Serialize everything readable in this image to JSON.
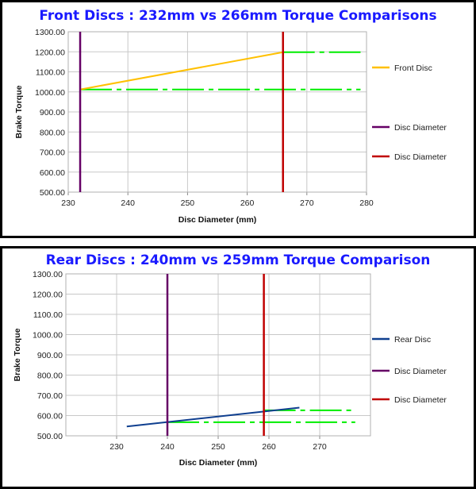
{
  "chart_data": [
    {
      "type": "line",
      "title": "Front Discs : 232mm vs 266mm Torque Comparisons",
      "xlabel": "Disc Diameter (mm)",
      "ylabel": "Brake Torque",
      "xlim": [
        230,
        280
      ],
      "ylim": [
        500,
        1300
      ],
      "xticks": [
        "230",
        "240",
        "250",
        "260",
        "270",
        "280"
      ],
      "yticks": [
        "500.00",
        "600.00",
        "700.00",
        "800.00",
        "900.00",
        "1000.00",
        "1100.00",
        "1200.00",
        "1300.00"
      ],
      "grid": true,
      "legend_position": "right",
      "series": [
        {
          "name": "Front Disc",
          "kind": "line",
          "color": "#ffc000",
          "points": [
            [
              232,
              1012
            ],
            [
              266,
              1198
            ]
          ]
        },
        {
          "name": "Disc Diameter",
          "kind": "vline",
          "color": "#660066",
          "x": 232
        },
        {
          "name": "Disc Diameter",
          "kind": "vline",
          "color": "#c00000",
          "x": 266
        }
      ],
      "reference_lines": [
        {
          "kind": "hline-dashed",
          "color": "#00ee00",
          "y": 1012,
          "x_range": [
            232,
            279
          ]
        },
        {
          "kind": "hline-dashed",
          "color": "#00ee00",
          "y": 1198,
          "x_range": [
            266,
            279
          ]
        }
      ]
    },
    {
      "type": "line",
      "title": "Rear Discs : 240mm vs 259mm Torque Comparison",
      "xlabel": "Disc Diameter (mm)",
      "ylabel": "Brake Torque",
      "xlim": [
        220,
        280
      ],
      "ylim": [
        500,
        1300
      ],
      "xticks": [
        "230",
        "240",
        "250",
        "260",
        "270"
      ],
      "xtick_values": [
        230,
        240,
        250,
        260,
        270
      ],
      "yticks": [
        "500.00",
        "600.00",
        "700.00",
        "800.00",
        "900.00",
        "1000.00",
        "1100.00",
        "1200.00",
        "1300.00"
      ],
      "grid": true,
      "legend_position": "right",
      "series": [
        {
          "name": "Rear Disc",
          "kind": "line",
          "color": "#0f3f8f",
          "points": [
            [
              232,
              546
            ],
            [
              266,
              639
            ]
          ]
        },
        {
          "name": "Disc Diameter",
          "kind": "vline",
          "color": "#660066",
          "x": 240
        },
        {
          "name": "Disc Diameter",
          "kind": "vline",
          "color": "#c00000",
          "x": 259
        }
      ],
      "reference_lines": [
        {
          "kind": "hline-dashed",
          "color": "#00ee00",
          "y": 567,
          "x_range": [
            240,
            277
          ]
        },
        {
          "kind": "hline-dashed",
          "color": "#00ee00",
          "y": 626,
          "x_range": [
            259,
            277
          ]
        }
      ]
    }
  ]
}
